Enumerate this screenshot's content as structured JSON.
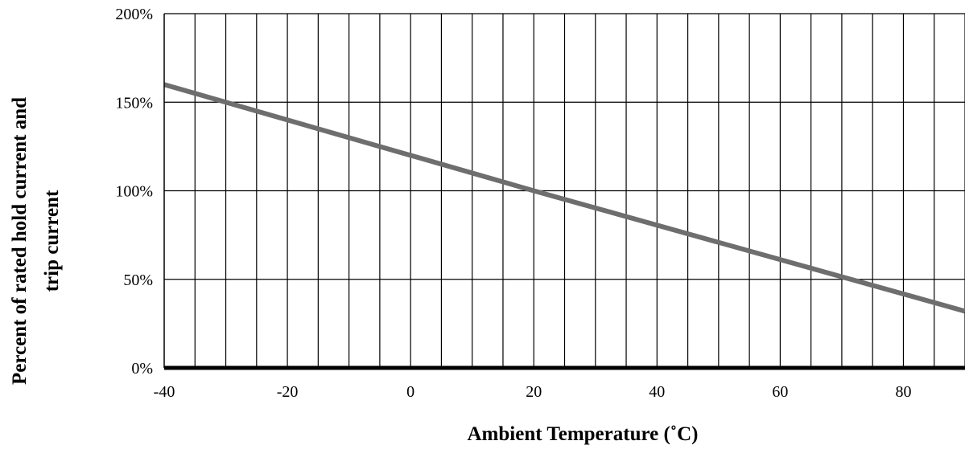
{
  "chart_data": {
    "type": "line",
    "title": "",
    "xlabel": "Ambient Temperature (˚C)",
    "ylabel_lines": [
      "Percent of rated hold current and",
      "trip current"
    ],
    "xlim": [
      -40,
      90
    ],
    "ylim": [
      0,
      200
    ],
    "x_ticks": [
      -40,
      -20,
      0,
      20,
      40,
      60,
      80
    ],
    "x_tick_labels": [
      "-40",
      "-20",
      "0",
      "20",
      "40",
      "60",
      "80"
    ],
    "x_minor_step": 5,
    "y_ticks": [
      0,
      50,
      100,
      150,
      200
    ],
    "y_tick_labels": [
      "0%",
      "50%",
      "100%",
      "150%",
      "200%"
    ],
    "grid": true,
    "line_color": "#6e6e6e",
    "series": [
      {
        "x": [
          -40,
          20,
          90
        ],
        "values": [
          160,
          100,
          32
        ]
      }
    ]
  }
}
